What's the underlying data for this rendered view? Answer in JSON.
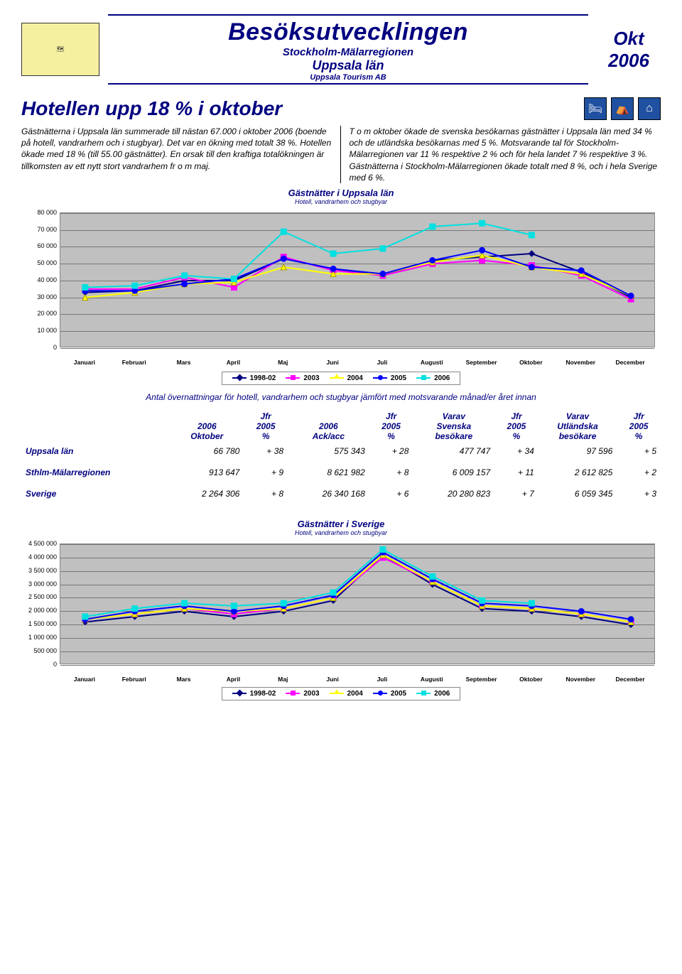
{
  "header": {
    "main_title": "Besöksutvecklingen",
    "sub1": "Stockholm-Mälarregionen",
    "sub2": "Uppsala län",
    "sub3": "Uppsala Tourism AB",
    "month": "Okt",
    "year": "2006"
  },
  "headline": "Hotellen upp 18 % i oktober",
  "body": {
    "left": "Gästnätterna i Uppsala län summerade till nästan 67.000 i oktober 2006 (boende på hotell, vandrarhem och i stugbyar). Det var en ökning med totalt 38 %. Hotellen ökade med 18 % (till 55.00 gästnätter). En orsak till den kraftiga totalökningen är tillkomsten av ett nytt stort vandrarhem fr o m maj.",
    "right": "T o m oktober ökade de svenska besökarnas gästnätter i Uppsala län med 34 % och de utländska besökarnas med 5 %. Motsvarande tal för Stockholm-Mälarregionen var 11 % respektive 2 % och för hela landet 7 % respektive 3 %. Gästnätterna i Stockholm-Mälarregionen ökade totalt med 8 %, och i hela Sverige med 6 %."
  },
  "chart1": {
    "title": "Gästnätter i Uppsala län",
    "subtitle": "Hotell, vandrarhem och stugbyar",
    "months": [
      "Januari",
      "Februari",
      "Mars",
      "April",
      "Maj",
      "Juni",
      "Juli",
      "Augusti",
      "September",
      "Oktober",
      "November",
      "December"
    ],
    "ymin": 0,
    "ymax": 80000,
    "ystep": 10000,
    "bg": "#c0c0c0",
    "grid": "#777777",
    "series": [
      {
        "name": "1998-02",
        "color": "#000080",
        "marker": "diamond",
        "values": [
          33000,
          34000,
          40000,
          40000,
          53000,
          47000,
          43000,
          52000,
          54000,
          56000,
          45000,
          30000
        ]
      },
      {
        "name": "2003",
        "color": "#ff00ff",
        "marker": "square",
        "values": [
          35000,
          35000,
          42000,
          36000,
          54000,
          46000,
          43000,
          50000,
          52000,
          49000,
          43000,
          29000
        ]
      },
      {
        "name": "2004",
        "color": "#ffff00",
        "marker": "triangle",
        "values": [
          30000,
          33000,
          38000,
          39000,
          48000,
          44000,
          44000,
          51000,
          55000,
          48000,
          44000,
          31000
        ]
      },
      {
        "name": "2005",
        "color": "#0000ff",
        "marker": "circle",
        "values": [
          34000,
          34000,
          38000,
          41000,
          53000,
          47000,
          44000,
          52000,
          58000,
          48000,
          46000,
          31000
        ]
      },
      {
        "name": "2006",
        "color": "#00e0e0",
        "marker": "square",
        "values": [
          36000,
          37000,
          43000,
          41000,
          69000,
          56000,
          59000,
          72000,
          74000,
          67000,
          null,
          null
        ]
      }
    ]
  },
  "legend_years": [
    "1998-02",
    "2003",
    "2004",
    "2005",
    "2006"
  ],
  "legend_colors": [
    "#000080",
    "#ff00ff",
    "#ffff00",
    "#0000ff",
    "#00e0e0"
  ],
  "legend_markers": [
    "diamond",
    "square",
    "triangle",
    "circle",
    "square"
  ],
  "table": {
    "caption": "Antal övernattningar för hotell, vandrarhem och stugbyar jämfört med motsvarande månad/er året innan",
    "headers": {
      "c1": "2006\nOktober",
      "c2": "Jfr\n2005\n%",
      "c3": "2006\nAck/acc",
      "c4": "Jfr\n2005\n%",
      "c5": "Varav\nSvenska\nbesökare",
      "c6": "Jfr\n2005\n%",
      "c7": "Varav\nUtländska\nbesökare",
      "c8": "Jfr\n2005\n%"
    },
    "rows": [
      {
        "label": "Uppsala län",
        "v": [
          "66 780",
          "+ 38",
          "575 343",
          "+ 28",
          "477 747",
          "+ 34",
          "97 596",
          "+ 5"
        ]
      },
      {
        "label": "Sthlm-Mälarregionen",
        "v": [
          "913 647",
          "+ 9",
          "8 621 982",
          "+ 8",
          "6 009 157",
          "+ 11",
          "2 612 825",
          "+ 2"
        ]
      },
      {
        "label": "Sverige",
        "v": [
          "2 264 306",
          "+ 8",
          "26 340 168",
          "+ 6",
          "20 280 823",
          "+ 7",
          "6 059 345",
          "+ 3"
        ]
      }
    ]
  },
  "chart2": {
    "title": "Gästnätter i Sverige",
    "subtitle": "Hotell, vandrarhem och stugbyar",
    "months": [
      "Januari",
      "Februari",
      "Mars",
      "April",
      "Maj",
      "Juni",
      "Juli",
      "Augusti",
      "September",
      "Oktober",
      "November",
      "December"
    ],
    "ymin": 0,
    "ymax": 4500000,
    "ystep": 500000,
    "bg": "#c0c0c0",
    "grid": "#777777",
    "series": [
      {
        "name": "1998-02",
        "color": "#000080",
        "marker": "diamond",
        "values": [
          1600000,
          1800000,
          2000000,
          1800000,
          2000000,
          2400000,
          4100000,
          3000000,
          2100000,
          2000000,
          1800000,
          1500000
        ]
      },
      {
        "name": "2003",
        "color": "#ff00ff",
        "marker": "square",
        "values": [
          1700000,
          1900000,
          2100000,
          1900000,
          2100000,
          2500000,
          4000000,
          3100000,
          2200000,
          2100000,
          1900000,
          1600000
        ]
      },
      {
        "name": "2004",
        "color": "#ffff00",
        "marker": "triangle",
        "values": [
          1700000,
          1900000,
          2100000,
          2000000,
          2100000,
          2500000,
          4100000,
          3100000,
          2200000,
          2100000,
          1900000,
          1600000
        ]
      },
      {
        "name": "2005",
        "color": "#0000ff",
        "marker": "circle",
        "values": [
          1700000,
          2000000,
          2200000,
          2000000,
          2200000,
          2600000,
          4200000,
          3200000,
          2300000,
          2200000,
          2000000,
          1700000
        ]
      },
      {
        "name": "2006",
        "color": "#00e0e0",
        "marker": "square",
        "values": [
          1800000,
          2100000,
          2300000,
          2200000,
          2300000,
          2700000,
          4300000,
          3300000,
          2400000,
          2300000,
          null,
          null
        ]
      }
    ]
  }
}
